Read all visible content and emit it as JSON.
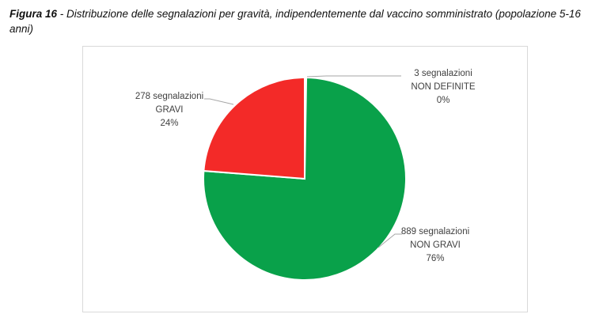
{
  "caption": {
    "figure_label": "Figura 16",
    "text": " - Distribuzione delle segnalazioni per gravità, indipendentemente dal vaccino somministrato (popolazione 5-16 anni)"
  },
  "colors": {
    "non_definite": "#ffffff",
    "non_gravi": "#09a14a",
    "gravi": "#f32a28",
    "label_text": "#404040",
    "leader": "#a6a6a6"
  },
  "chart_data": {
    "type": "pie",
    "title": "",
    "start_angle_deg": 0,
    "direction": "clockwise",
    "slices": [
      {
        "name": "NON DEFINITE",
        "value": 3,
        "percent": 0,
        "label_lines": [
          "3 segnalazioni",
          "NON DEFINITE",
          "0%"
        ]
      },
      {
        "name": "NON GRAVI",
        "value": 889,
        "percent": 76,
        "label_lines": [
          "889 segnalazioni",
          "NON GRAVI",
          "76%"
        ]
      },
      {
        "name": "GRAVI",
        "value": 278,
        "percent": 24,
        "label_lines": [
          "278 segnalazioni",
          "GRAVI",
          "24%"
        ]
      }
    ]
  }
}
